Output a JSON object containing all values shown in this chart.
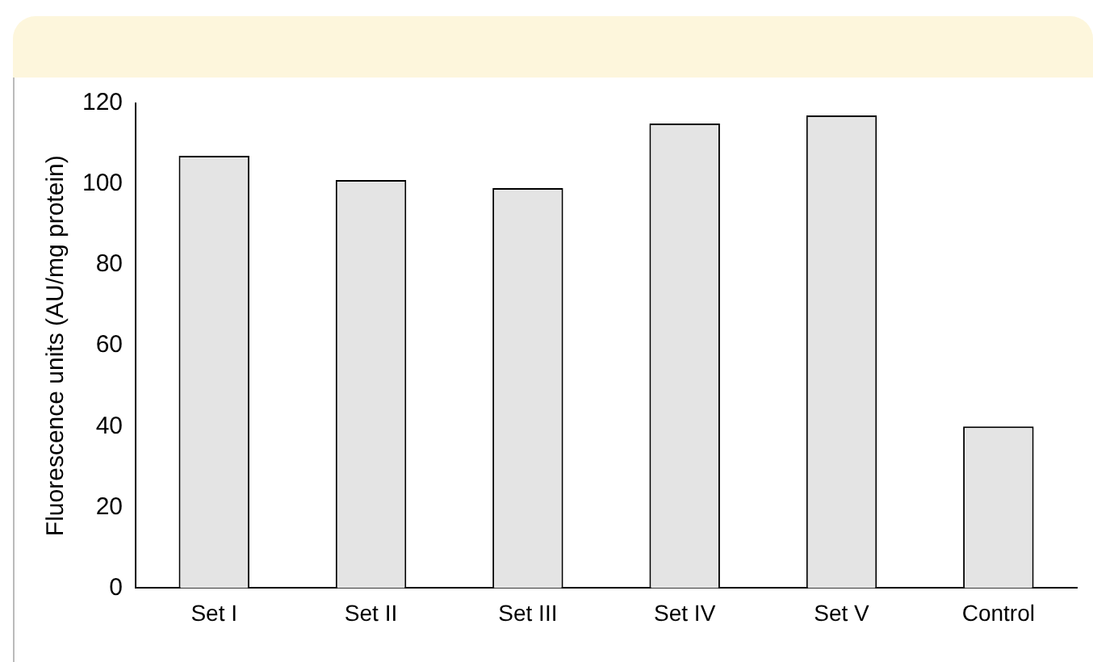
{
  "chart_data": {
    "type": "bar",
    "ylabel": "Fluorescence units (AU/mg protein)",
    "categories": [
      "Set I",
      "Set II",
      "Set III",
      "Set IV",
      "Set V",
      "Control"
    ],
    "values": [
      107,
      101,
      99,
      115,
      117,
      40
    ],
    "color": "#e4e4e4",
    "ylim": [
      0,
      120
    ],
    "yticks": [
      0,
      20,
      40,
      60,
      80,
      100,
      120
    ],
    "grid": false,
    "legend": false
  }
}
